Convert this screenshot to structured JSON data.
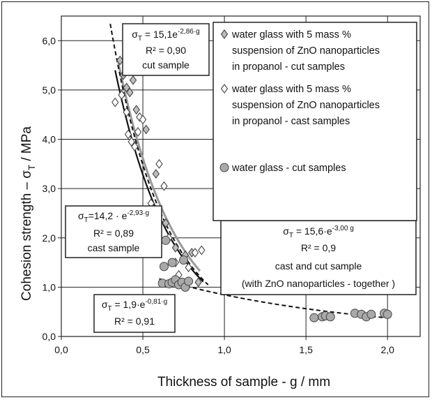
{
  "chart_data": {
    "type": "scatter",
    "xlabel": "Thickness of sample  - g / mm",
    "ylabel_main": "Cohesion strength – σ",
    "ylabel_sub": "T",
    "ylabel_unit": " / MPa",
    "xlim": [
      0,
      2.2
    ],
    "ylim": [
      0,
      6.5
    ],
    "xticks": [
      "0,0",
      "0,5",
      "1,0",
      "1,5",
      "2,0"
    ],
    "xtick_values": [
      0,
      0.5,
      1.0,
      1.5,
      2.0
    ],
    "yticks": [
      "0,0",
      "1,0",
      "2,0",
      "3,0",
      "4,0",
      "5,0",
      "6,0"
    ],
    "ytick_values": [
      0,
      1,
      2,
      3,
      4,
      5,
      6
    ],
    "grid": true,
    "legend_position": "top-right",
    "series": [
      {
        "name": "water glass with 5 mass % suspension of ZnO nanoparticles in propanol - cut samples",
        "legend_lines": [
          "water glass with 5 mass %",
          "suspension of ZnO nanoparticles",
          "in propanol  - cut samples"
        ],
        "marker": "diamond",
        "fill": "#bdbdbd",
        "points": [
          [
            0.36,
            5.6
          ],
          [
            0.38,
            5.3
          ],
          [
            0.4,
            5.05
          ],
          [
            0.42,
            4.95
          ],
          [
            0.44,
            5.2
          ],
          [
            0.46,
            4.6
          ],
          [
            0.52,
            4.2
          ],
          [
            0.58,
            3.3
          ],
          [
            0.64,
            2.3
          ],
          [
            0.7,
            1.8
          ],
          [
            0.76,
            1.65
          ],
          [
            0.8,
            1.7
          ],
          [
            0.84,
            1.1
          ]
        ]
      },
      {
        "name": "water glass with 5 mass % suspension of ZnO nanoparticles in propanol - cast samples",
        "legend_lines": [
          "water glass with 5 mass %",
          "suspension of ZnO nanoparticles",
          "in propanol  - cast samples"
        ],
        "marker": "diamond",
        "fill": "#ffffff",
        "points": [
          [
            0.33,
            4.75
          ],
          [
            0.37,
            4.9
          ],
          [
            0.4,
            4.55
          ],
          [
            0.41,
            4.1
          ],
          [
            0.43,
            3.95
          ],
          [
            0.45,
            3.85
          ],
          [
            0.47,
            4.15
          ],
          [
            0.48,
            4.45
          ],
          [
            0.5,
            4.4
          ],
          [
            0.6,
            3.5
          ],
          [
            0.63,
            3.05
          ],
          [
            0.55,
            2.7
          ],
          [
            0.6,
            2.45
          ],
          [
            0.66,
            2.0
          ],
          [
            0.7,
            1.5
          ],
          [
            0.72,
            1.25
          ],
          [
            0.78,
            1.4
          ],
          [
            0.82,
            1.7
          ],
          [
            0.86,
            1.75
          ]
        ]
      },
      {
        "name": "water glass - cut samples",
        "legend_lines": [
          "water glass  - cut samples"
        ],
        "marker": "circle",
        "fill": "#a9a9a9",
        "points": [
          [
            0.62,
            1.08
          ],
          [
            0.63,
            1.42
          ],
          [
            0.64,
            1.95
          ],
          [
            0.66,
            1.07
          ],
          [
            0.68,
            1.1
          ],
          [
            0.7,
            1.15
          ],
          [
            0.72,
            1.05
          ],
          [
            0.74,
            1.1
          ],
          [
            0.76,
            1.0
          ],
          [
            0.78,
            1.12
          ],
          [
            0.68,
            1.5
          ],
          [
            0.75,
            1.55
          ],
          [
            1.55,
            0.38
          ],
          [
            1.6,
            0.4
          ],
          [
            1.62,
            0.42
          ],
          [
            1.65,
            0.4
          ],
          [
            1.8,
            0.47
          ],
          [
            1.84,
            0.45
          ],
          [
            1.87,
            0.4
          ],
          [
            1.9,
            0.45
          ],
          [
            1.98,
            0.47
          ],
          [
            2.0,
            0.45
          ]
        ]
      }
    ],
    "fits": [
      {
        "label": "cut sample",
        "a": 15.1,
        "b": -2.86,
        "x_range": [
          0.35,
          0.85
        ],
        "stroke": "#999999",
        "width": 3,
        "dash": ""
      },
      {
        "label": "cast sample",
        "a": 14.2,
        "b": -2.93,
        "x_range": [
          0.33,
          0.87
        ],
        "stroke": "#111111",
        "width": 2.2,
        "dash": ""
      },
      {
        "label": "cast and cut sample",
        "a": 15.6,
        "b": -3.0,
        "x_range": [
          0.3,
          0.9
        ],
        "stroke": "#111111",
        "width": 2,
        "dash": "6,4"
      },
      {
        "label": "water glass",
        "a": 1.9,
        "b": -0.81,
        "x_range": [
          0.6,
          2.0
        ],
        "stroke": "#111111",
        "width": 2,
        "dash": "6,4"
      }
    ],
    "annotations": {
      "cut": {
        "line1_pre": "σ",
        "line1_sub": "T",
        "line1_mid": " = 15,1e",
        "line1_sup": "-2,86·g",
        "line2": "R² = 0,90",
        "line3": "cut sample"
      },
      "cast": {
        "line1_pre": "σ",
        "line1_sub": "T",
        "line1_mid": "=14,2 · e",
        "line1_sup": "-2,93·g",
        "line2": "R² = 0,89",
        "line3": "cast sample"
      },
      "together": {
        "line1_pre": "σ",
        "line1_sub": "T",
        "line1_mid": " = 15,6·e",
        "line1_sup": "-3,00 g",
        "line2": "R² = 0,9",
        "line3": "cast and cut sample",
        "line4": "(with ZnO nanoparticles - together )"
      },
      "waterglass": {
        "line1_pre": "σ",
        "line1_sub": "T",
        "line1_mid": " = 1,9·e",
        "line1_sup": "-0,81·g",
        "line2": "R² = 0,91"
      }
    }
  }
}
